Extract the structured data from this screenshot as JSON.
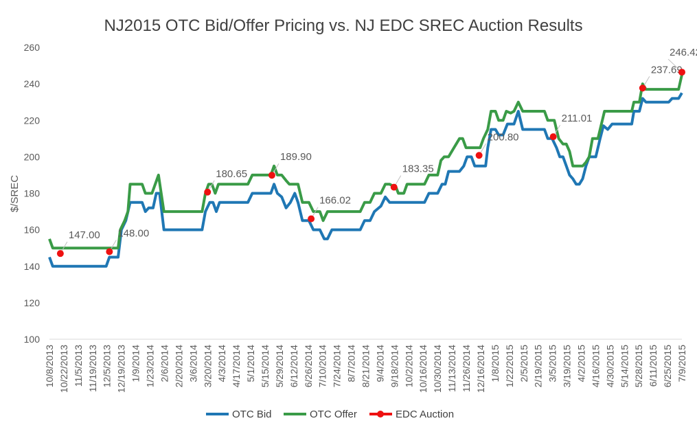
{
  "chart_data": {
    "type": "line",
    "title": "NJ2015 OTC Bid/Offer Pricing vs. NJ EDC SREC Auction Results",
    "xlabel": "",
    "ylabel": "$/SREC",
    "ylim": [
      100,
      260
    ],
    "yticks": [
      100,
      120,
      140,
      160,
      180,
      200,
      220,
      240,
      260
    ],
    "grid": false,
    "legend": "bottom",
    "x_tick_labels": [
      "10/8/2013",
      "10/22/2013",
      "11/5/2013",
      "11/19/2013",
      "12/5/2013",
      "12/19/2013",
      "1/9/2014",
      "1/23/2014",
      "2/6/2014",
      "2/20/2014",
      "3/6/2014",
      "3/20/2014",
      "4/3/2014",
      "4/17/2014",
      "5/1/2014",
      "5/15/2014",
      "5/29/2014",
      "6/12/2014",
      "6/26/2014",
      "7/10/2014",
      "7/24/2014",
      "8/7/2014",
      "8/21/2014",
      "9/4/2014",
      "9/18/2014",
      "10/2/2014",
      "10/16/2014",
      "10/30/2014",
      "11/13/2014",
      "11/26/2014",
      "12/16/2014",
      "1/8/2015",
      "1/22/2015",
      "2/5/2015",
      "2/19/2015",
      "3/5/2015",
      "3/19/2015",
      "4/2/2015",
      "4/16/2015",
      "4/30/2015",
      "5/14/2015",
      "5/28/2015",
      "6/11/2015",
      "6/25/2015",
      "7/9/2015"
    ],
    "series": [
      {
        "name": "OTC Bid",
        "color": "#1f77b4",
        "points": [
          [
            0,
            145
          ],
          [
            0.3,
            140
          ],
          [
            1,
            140
          ],
          [
            2,
            140
          ],
          [
            3,
            140
          ],
          [
            4,
            140
          ],
          [
            5.2,
            140
          ],
          [
            5.5,
            145
          ],
          [
            6.3,
            145
          ],
          [
            6.6,
            160
          ],
          [
            7,
            165
          ],
          [
            7.4,
            175
          ],
          [
            8.5,
            175
          ],
          [
            8.8,
            170
          ],
          [
            9.1,
            172
          ],
          [
            9.5,
            172
          ],
          [
            9.8,
            180
          ],
          [
            10.1,
            180
          ],
          [
            10.5,
            160
          ],
          [
            12,
            160
          ],
          [
            13.5,
            160
          ],
          [
            14,
            160
          ],
          [
            14.3,
            170
          ],
          [
            14.7,
            175
          ],
          [
            15,
            175
          ],
          [
            15.3,
            170
          ],
          [
            15.6,
            175
          ],
          [
            17,
            175
          ],
          [
            18.2,
            175
          ],
          [
            18.6,
            180
          ],
          [
            20.3,
            180
          ],
          [
            20.6,
            185
          ],
          [
            20.9,
            180
          ],
          [
            21.3,
            178
          ],
          [
            21.7,
            172
          ],
          [
            22.1,
            175
          ],
          [
            22.5,
            180
          ],
          [
            22.8,
            175
          ],
          [
            23.2,
            165
          ],
          [
            23.8,
            165
          ],
          [
            24.2,
            160
          ],
          [
            24.8,
            160
          ],
          [
            25.2,
            155
          ],
          [
            25.5,
            155
          ],
          [
            25.9,
            160
          ],
          [
            27,
            160
          ],
          [
            28,
            160
          ],
          [
            28.5,
            160
          ],
          [
            28.9,
            165
          ],
          [
            29.4,
            165
          ],
          [
            29.8,
            170
          ],
          [
            30.4,
            173
          ],
          [
            30.8,
            178
          ],
          [
            31.2,
            175
          ],
          [
            33,
            175
          ],
          [
            34.4,
            175
          ],
          [
            34.8,
            180
          ],
          [
            35.6,
            180
          ],
          [
            36,
            185
          ],
          [
            36.3,
            185
          ],
          [
            36.6,
            192
          ],
          [
            37.6,
            192
          ],
          [
            38,
            195
          ],
          [
            38.3,
            200
          ],
          [
            38.7,
            200
          ],
          [
            39,
            195
          ],
          [
            39.5,
            195
          ],
          [
            40,
            195
          ],
          [
            40.2,
            205
          ],
          [
            40.5,
            215
          ],
          [
            40.9,
            215
          ],
          [
            41.2,
            212
          ],
          [
            41.6,
            212
          ],
          [
            42,
            218
          ],
          [
            42.6,
            218
          ],
          [
            43,
            225
          ],
          [
            43.4,
            215
          ],
          [
            44.5,
            215
          ],
          [
            45.4,
            215
          ],
          [
            45.7,
            210
          ],
          [
            46.1,
            210
          ],
          [
            46.5,
            205
          ],
          [
            46.8,
            200
          ],
          [
            47.1,
            200
          ],
          [
            47.4,
            195
          ],
          [
            47.7,
            190
          ],
          [
            48,
            188
          ],
          [
            48.3,
            185
          ],
          [
            48.6,
            185
          ],
          [
            48.9,
            188
          ],
          [
            49.2,
            195
          ],
          [
            49.5,
            200
          ],
          [
            50.1,
            200
          ],
          [
            50.5,
            210
          ],
          [
            50.8,
            217
          ],
          [
            51.2,
            215
          ],
          [
            51.6,
            218
          ],
          [
            52,
            218
          ],
          [
            53,
            218
          ],
          [
            53.4,
            218
          ],
          [
            53.6,
            225
          ],
          [
            54.1,
            225
          ],
          [
            54.4,
            232
          ],
          [
            54.7,
            230
          ],
          [
            56,
            230
          ],
          [
            56.8,
            230
          ],
          [
            57.1,
            232
          ],
          [
            57.7,
            232
          ],
          [
            58,
            235
          ]
        ]
      },
      {
        "name": "OTC Offer",
        "color": "#3a9b47",
        "points": [
          [
            0,
            155
          ],
          [
            0.3,
            150
          ],
          [
            1,
            150
          ],
          [
            2,
            150
          ],
          [
            3,
            150
          ],
          [
            4,
            150
          ],
          [
            5.2,
            150
          ],
          [
            5.5,
            150
          ],
          [
            6.3,
            150
          ],
          [
            6.5,
            160
          ],
          [
            6.9,
            165
          ],
          [
            7.2,
            170
          ],
          [
            7.4,
            185
          ],
          [
            8.5,
            185
          ],
          [
            8.8,
            180
          ],
          [
            9.4,
            180
          ],
          [
            10,
            190
          ],
          [
            10.5,
            170
          ],
          [
            12,
            170
          ],
          [
            13.5,
            170
          ],
          [
            14,
            170
          ],
          [
            14.3,
            180
          ],
          [
            14.6,
            185
          ],
          [
            14.9,
            185
          ],
          [
            15.2,
            180
          ],
          [
            15.5,
            185
          ],
          [
            17,
            185
          ],
          [
            18.2,
            185
          ],
          [
            18.6,
            190
          ],
          [
            20.3,
            190
          ],
          [
            20.6,
            195
          ],
          [
            20.9,
            190
          ],
          [
            21.3,
            190
          ],
          [
            21.7,
            187
          ],
          [
            22,
            185
          ],
          [
            22.8,
            185
          ],
          [
            23.2,
            175
          ],
          [
            23.8,
            175
          ],
          [
            24.2,
            170
          ],
          [
            24.8,
            170
          ],
          [
            25.1,
            165
          ],
          [
            25.5,
            170
          ],
          [
            27,
            170
          ],
          [
            28,
            170
          ],
          [
            28.5,
            170
          ],
          [
            28.9,
            175
          ],
          [
            29.4,
            175
          ],
          [
            29.8,
            180
          ],
          [
            30.4,
            180
          ],
          [
            30.8,
            185
          ],
          [
            31.2,
            185
          ],
          [
            31.8,
            183
          ],
          [
            32,
            180
          ],
          [
            32.5,
            180
          ],
          [
            32.8,
            185
          ],
          [
            34.4,
            185
          ],
          [
            34.8,
            190
          ],
          [
            35.6,
            190
          ],
          [
            35.9,
            198
          ],
          [
            36.2,
            200
          ],
          [
            36.6,
            200
          ],
          [
            37.1,
            205
          ],
          [
            37.6,
            210
          ],
          [
            37.9,
            210
          ],
          [
            38.2,
            205
          ],
          [
            39,
            205
          ],
          [
            39.5,
            205
          ],
          [
            39.8,
            210
          ],
          [
            40.2,
            215
          ],
          [
            40.5,
            225
          ],
          [
            40.9,
            225
          ],
          [
            41.2,
            220
          ],
          [
            41.6,
            220
          ],
          [
            41.9,
            225
          ],
          [
            42.3,
            224
          ],
          [
            42.6,
            225
          ],
          [
            43,
            230
          ],
          [
            43.4,
            225
          ],
          [
            44.5,
            225
          ],
          [
            45.4,
            225
          ],
          [
            45.7,
            220
          ],
          [
            46.3,
            220
          ],
          [
            46.7,
            210
          ],
          [
            47.1,
            207
          ],
          [
            47.4,
            207
          ],
          [
            47.7,
            203
          ],
          [
            48,
            195
          ],
          [
            48.9,
            195
          ],
          [
            49.2,
            197
          ],
          [
            49.5,
            200
          ],
          [
            49.8,
            210
          ],
          [
            50.3,
            210
          ],
          [
            50.7,
            220
          ],
          [
            50.9,
            225
          ],
          [
            53.4,
            225
          ],
          [
            53.6,
            230
          ],
          [
            54.1,
            230
          ],
          [
            54.4,
            240
          ],
          [
            54.7,
            237
          ],
          [
            56,
            237
          ],
          [
            56.8,
            237
          ],
          [
            57.2,
            237
          ],
          [
            57.7,
            237
          ],
          [
            58,
            245
          ]
        ]
      }
    ],
    "auction_series": {
      "name": "EDC Auction",
      "color": "#ee1111",
      "points": [
        {
          "x": 1,
          "y": 147.0,
          "label": "147.00"
        },
        {
          "x": 5.5,
          "y": 148.0,
          "label": "148.00"
        },
        {
          "x": 14.5,
          "y": 180.65,
          "label": "180.65"
        },
        {
          "x": 20.4,
          "y": 189.9,
          "label": "189.90"
        },
        {
          "x": 24,
          "y": 166.02,
          "label": "166.02"
        },
        {
          "x": 31.6,
          "y": 183.35,
          "label": "183.35"
        },
        {
          "x": 39.4,
          "y": 200.8,
          "label": "200.80"
        },
        {
          "x": 46.2,
          "y": 211.01,
          "label": "211.01"
        },
        {
          "x": 54.4,
          "y": 237.69,
          "label": "237.69"
        },
        {
          "x": 58,
          "y": 246.42,
          "label": "246.42"
        }
      ]
    }
  }
}
